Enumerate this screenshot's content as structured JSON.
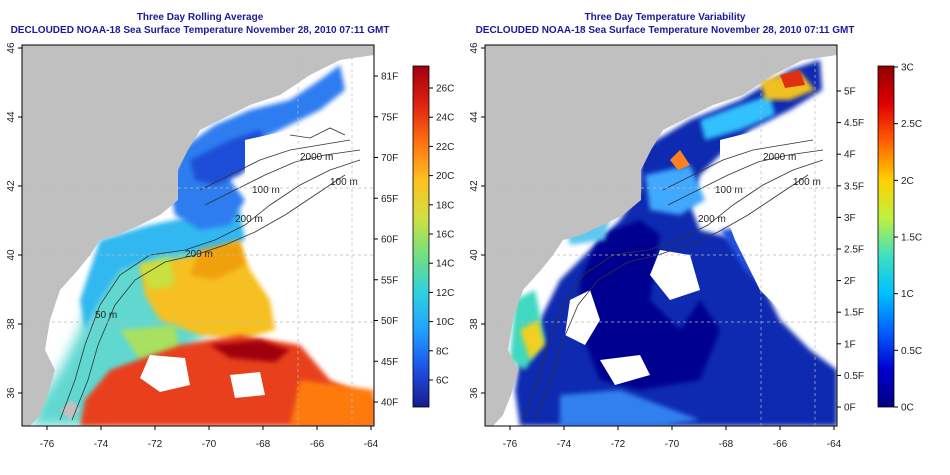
{
  "left_panel": {
    "title": "Three Day Rolling Average",
    "subtitle": "DECLOUDED NOAA-18 Sea Surface Temperature November 28, 2010 07:11 GMT",
    "lat_ticks": [
      "46",
      "44",
      "42",
      "40",
      "38",
      "36"
    ],
    "lon_ticks": [
      "-76",
      "-74",
      "-72",
      "-70",
      "-68",
      "-66",
      "-64"
    ],
    "contour_labels": [
      "100 m",
      "2000 m",
      "100 m",
      "200 m",
      "200 m",
      "50 m"
    ],
    "scale_f": [
      "81F",
      "75F",
      "70F",
      "65F",
      "60F",
      "55F",
      "50F",
      "45F",
      "40F"
    ],
    "scale_c": [
      "26C",
      "24C",
      "22C",
      "20C",
      "18C",
      "16C",
      "14C",
      "12C",
      "10C",
      "8C",
      "6C"
    ]
  },
  "right_panel": {
    "title": "Three Day Temperature Variability",
    "subtitle": "DECLOUDED NOAA-18 Sea Surface Temperature November 28, 2010 07:11 GMT",
    "lat_ticks": [
      "46",
      "44",
      "42",
      "40",
      "38",
      "36"
    ],
    "lon_ticks": [
      "-76",
      "-74",
      "-72",
      "-70",
      "-68",
      "-66",
      "-64"
    ],
    "contour_labels": [
      "100 m",
      "2000 m",
      "100 m",
      "200 m"
    ],
    "scale_f": [
      "5F",
      "4.5F",
      "4F",
      "3.5F",
      "3F",
      "2.5F",
      "2F",
      "1.5F",
      "1F",
      "0.5F",
      "0F"
    ],
    "scale_c": [
      "3C",
      "2.5C",
      "2C",
      "1.5C",
      "1C",
      "0.5C",
      "0C"
    ]
  },
  "colors": {
    "land": "#c0c0c0",
    "title": "#1a1a9a",
    "sst_ramp": [
      "#1a1a8c",
      "#1e50e6",
      "#20a0ff",
      "#30d0e0",
      "#70e080",
      "#d0e040",
      "#ffc020",
      "#ff7010",
      "#e02010",
      "#a00010"
    ],
    "var_ramp": [
      "#000080",
      "#0000d0",
      "#0060ff",
      "#00c0ff",
      "#40e0c0",
      "#c0f040",
      "#ffd000",
      "#ff6000",
      "#e00000",
      "#900000"
    ]
  }
}
